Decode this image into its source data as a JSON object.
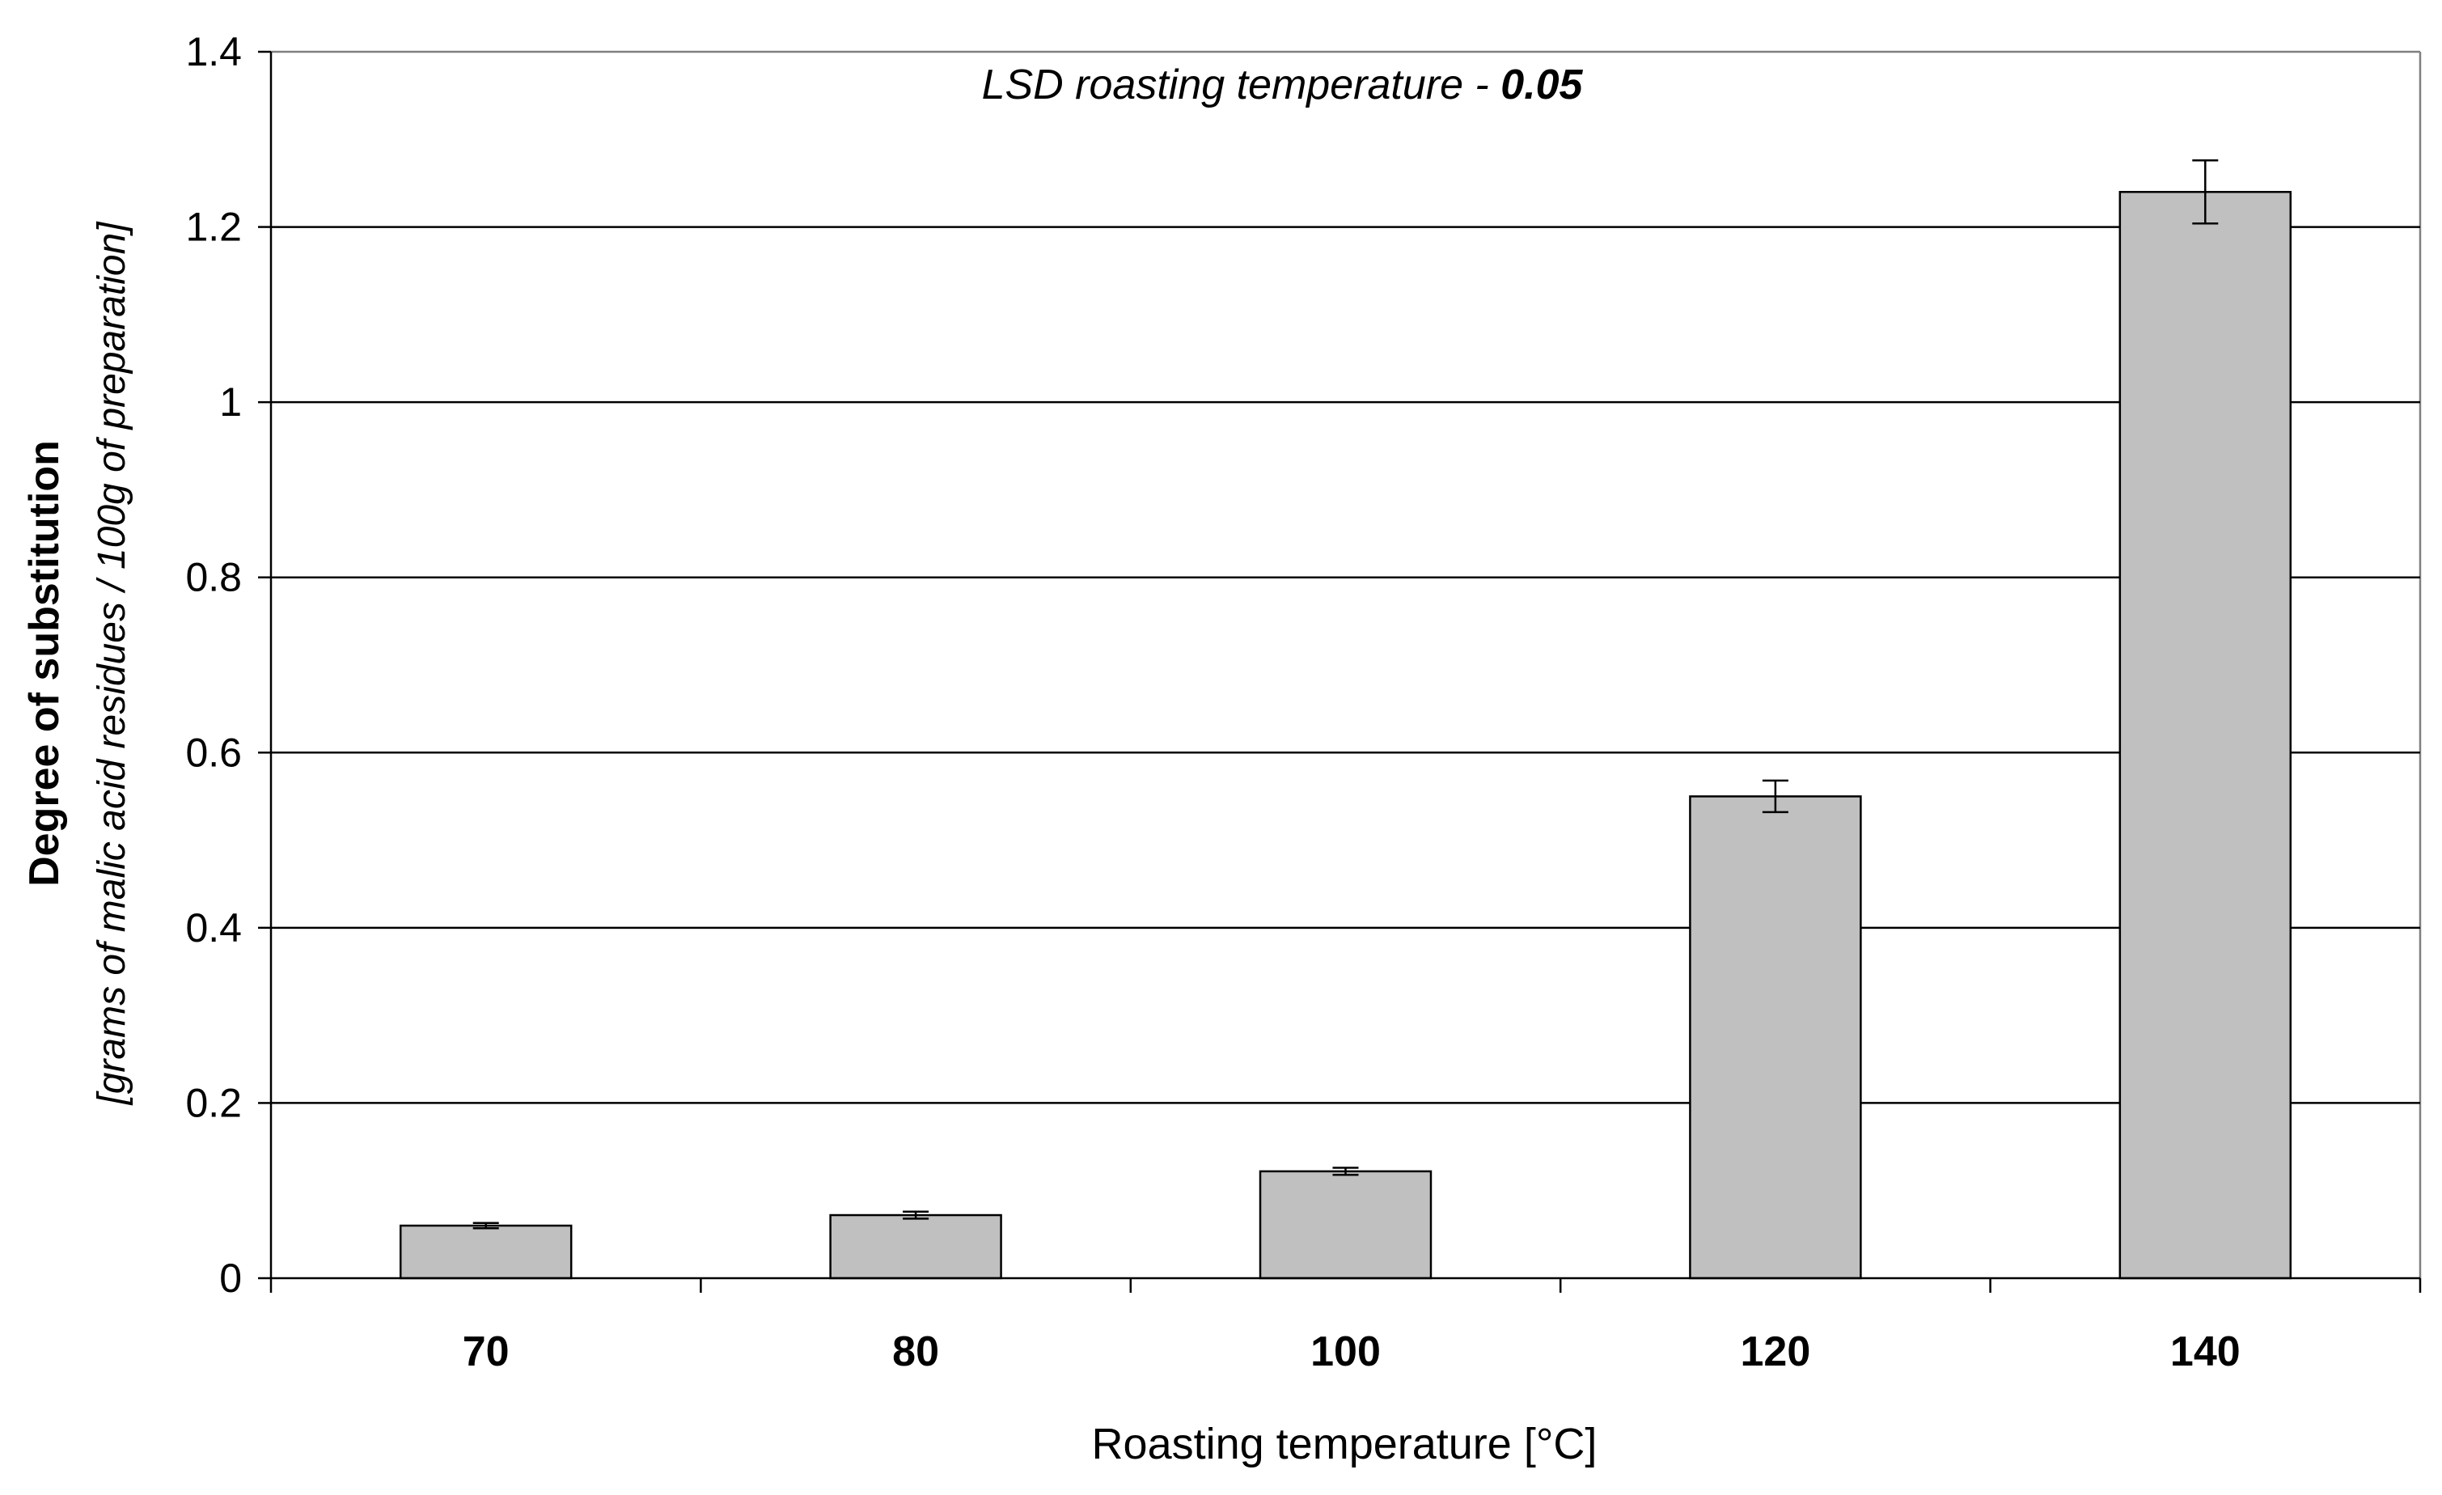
{
  "chart_data": {
    "type": "bar",
    "categories": [
      "70",
      "80",
      "100",
      "120",
      "140"
    ],
    "values": [
      0.06,
      0.072,
      0.122,
      0.55,
      1.24
    ],
    "errors": [
      0.003,
      0.004,
      0.004,
      0.018,
      0.036
    ],
    "xlabel": "Roasting temperature [°C]",
    "ylabel": "Degree of substitution",
    "ylabel_sub": "[grams of malic acid residues / 100g of preparation]",
    "ylim": [
      0,
      1.4
    ],
    "yticks": [
      "0",
      "0.2",
      "0.4",
      "0.6",
      "0.8",
      "1",
      "1.2",
      "1.4"
    ],
    "ytick_values": [
      0,
      0.2,
      0.4,
      0.6,
      0.8,
      1,
      1.2,
      1.4
    ],
    "grid": true,
    "annotation": {
      "text": "LSD roasting temperature - ",
      "value": "0.05"
    },
    "colors": {
      "bar_fill": "#c0c0c0",
      "bar_stroke": "#000000",
      "gridline": "#000000",
      "axis": "#000000",
      "plot_border": "#808080"
    }
  }
}
